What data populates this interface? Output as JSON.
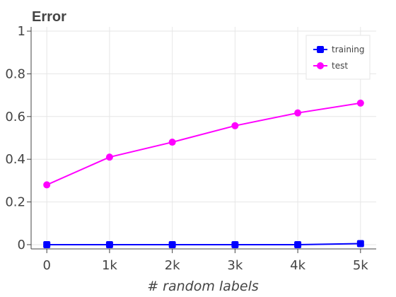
{
  "chart_data": {
    "type": "line",
    "title": "Error",
    "xlabel": "# random labels",
    "ylabel": "",
    "x": [
      0,
      1000,
      2000,
      3000,
      4000,
      5000
    ],
    "xtick_labels": [
      "0",
      "1k",
      "2k",
      "3k",
      "4k",
      "5k"
    ],
    "xlim": [
      -250,
      5250
    ],
    "ylim": [
      -0.02,
      1.02
    ],
    "yticks": [
      0,
      0.2,
      0.4,
      0.6,
      0.8,
      1
    ],
    "ytick_labels": [
      "0",
      "0.2",
      "0.4",
      "0.6",
      "0.8",
      "1"
    ],
    "grid": true,
    "legend_position": "top-right",
    "series": [
      {
        "name": "training",
        "color": "#0000ff",
        "marker": "square",
        "values": [
          0,
          0,
          0,
          0,
          0,
          0.005
        ]
      },
      {
        "name": "test",
        "color": "#ff00ff",
        "marker": "circle",
        "values": [
          0.28,
          0.41,
          0.48,
          0.557,
          0.617,
          0.663
        ]
      }
    ]
  }
}
